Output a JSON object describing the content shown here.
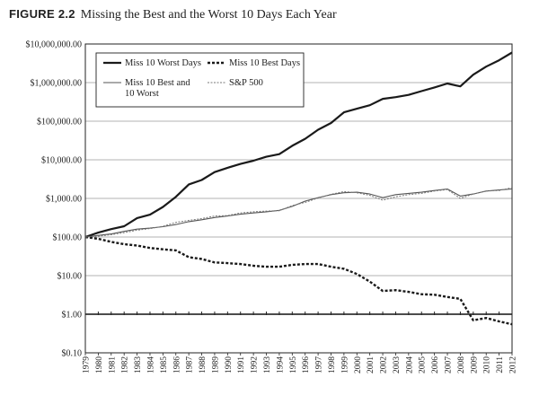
{
  "figure": {
    "label": "FIGURE 2.2",
    "title": "Missing the Best and the Worst 10 Days Each Year"
  },
  "chart_data": {
    "type": "line",
    "title": "Missing the Best and the Worst 10 Days Each Year",
    "xlabel": "",
    "ylabel": "",
    "yscale": "log",
    "ylim": [
      0.1,
      10000000
    ],
    "xlim": [
      1979,
      2012
    ],
    "grid": "horizontal",
    "legend_position": "top-left",
    "x_tick_labels": [
      "1979",
      "1980",
      "1981",
      "1982",
      "1983",
      "1984",
      "1985",
      "1986",
      "1987",
      "1988",
      "1989",
      "1990",
      "1991",
      "1992",
      "1993",
      "1994",
      "1995",
      "1996",
      "1997",
      "1998",
      "1999",
      "2000",
      "2001",
      "2002",
      "2003",
      "2004",
      "2005",
      "2006",
      "2007",
      "2008",
      "2009",
      "2010",
      "2011",
      "2012"
    ],
    "y_ticks": [
      {
        "value": 10000000,
        "label": "$10,000,000.00"
      },
      {
        "value": 1000000,
        "label": "$1,000,000.00"
      },
      {
        "value": 100000,
        "label": "$100,000.00"
      },
      {
        "value": 10000,
        "label": "$10,000.00"
      },
      {
        "value": 1000,
        "label": "$1,000.00"
      },
      {
        "value": 100,
        "label": "$100.00"
      },
      {
        "value": 10,
        "label": "$10.00"
      },
      {
        "value": 1,
        "label": "$1.00"
      },
      {
        "value": 0.1,
        "label": "$0.10"
      }
    ],
    "x": [
      1979,
      1980,
      1981,
      1982,
      1983,
      1984,
      1985,
      1986,
      1987,
      1988,
      1989,
      1990,
      1991,
      1992,
      1993,
      1994,
      1995,
      1996,
      1997,
      1998,
      1999,
      2000,
      2001,
      2002,
      2003,
      2004,
      2005,
      2006,
      2007,
      2008,
      2009,
      2010,
      2011,
      2012
    ],
    "series": [
      {
        "name": "Miss 10 Worst Days",
        "style": "solid-thick",
        "color": "#1a1a1a",
        "values": [
          100,
          130,
          160,
          190,
          310,
          380,
          600,
          1100,
          2300,
          3000,
          4800,
          6200,
          7800,
          9500,
          12000,
          14000,
          23000,
          35000,
          60000,
          90000,
          170000,
          210000,
          260000,
          380000,
          420000,
          480000,
          600000,
          750000,
          950000,
          800000,
          1600000,
          2600000,
          3800000,
          6000000
        ]
      },
      {
        "name": "Miss 10 Best Days",
        "style": "dashed-thick",
        "color": "#1a1a1a",
        "values": [
          100,
          90,
          75,
          65,
          60,
          52,
          48,
          45,
          30,
          27,
          22,
          21,
          20,
          18,
          17,
          17,
          19,
          20,
          20,
          17,
          15,
          11,
          7,
          4,
          4.2,
          3.8,
          3.3,
          3.2,
          2.8,
          2.5,
          0.7,
          0.8,
          0.65,
          0.55
        ]
      },
      {
        "name": "Miss 10 Best and 10 Worst",
        "style": "solid-thin",
        "color": "#555555",
        "values": [
          100,
          110,
          120,
          140,
          160,
          170,
          185,
          210,
          250,
          280,
          320,
          350,
          390,
          420,
          450,
          490,
          620,
          850,
          1050,
          1250,
          1400,
          1450,
          1300,
          1050,
          1250,
          1350,
          1450,
          1600,
          1750,
          1150,
          1300,
          1550,
          1650,
          1750
        ]
      },
      {
        "name": "S&P 500",
        "style": "dotted",
        "color": "#777777",
        "values": [
          100,
          105,
          115,
          130,
          150,
          165,
          190,
          240,
          270,
          300,
          350,
          360,
          420,
          450,
          470,
          480,
          650,
          790,
          1020,
          1280,
          1500,
          1400,
          1200,
          900,
          1100,
          1250,
          1350,
          1550,
          1700,
          1000,
          1300,
          1550,
          1600,
          1900
        ]
      }
    ]
  }
}
